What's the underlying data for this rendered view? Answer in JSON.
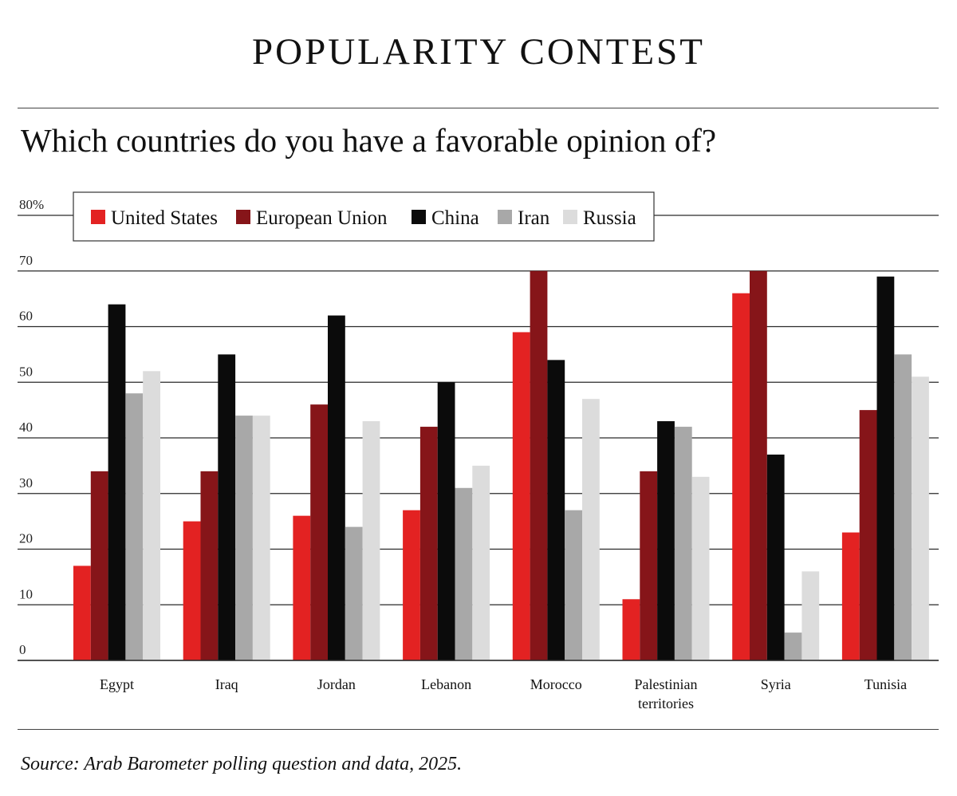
{
  "title": "POPULARITY CONTEST",
  "subtitle": "Which countries do you have a favorable opinion of?",
  "source": "Source: Arab Barometer polling question and data, 2025.",
  "colors": {
    "united_states": "#e32222",
    "european_union": "#861519",
    "china": "#0b0b0b",
    "iran": "#a8a8a8",
    "russia": "#dcdcdc"
  },
  "chart_data": {
    "type": "bar",
    "title": "Which countries do you have a favorable opinion of?",
    "xlabel": "",
    "ylabel": "",
    "ylim": [
      0,
      80
    ],
    "yticks": [
      {
        "value": 0,
        "label": "0"
      },
      {
        "value": 10,
        "label": "10"
      },
      {
        "value": 20,
        "label": "20"
      },
      {
        "value": 30,
        "label": "30"
      },
      {
        "value": 40,
        "label": "40"
      },
      {
        "value": 50,
        "label": "50"
      },
      {
        "value": 60,
        "label": "60"
      },
      {
        "value": 70,
        "label": "70"
      },
      {
        "value": 80,
        "label": "80%"
      }
    ],
    "legend_position": "top-left",
    "categories": [
      [
        "Egypt"
      ],
      [
        "Iraq"
      ],
      [
        "Jordan"
      ],
      [
        "Lebanon"
      ],
      [
        "Morocco"
      ],
      [
        "Palestinian",
        "territories"
      ],
      [
        "Syria"
      ],
      [
        "Tunisia"
      ]
    ],
    "series": [
      {
        "name": "United States",
        "color": "#e32222",
        "values": [
          17,
          25,
          26,
          27,
          59,
          11,
          66,
          23
        ]
      },
      {
        "name": "European Union",
        "color": "#861519",
        "values": [
          34,
          34,
          46,
          42,
          70,
          34,
          70,
          45
        ]
      },
      {
        "name": "China",
        "color": "#0b0b0b",
        "values": [
          64,
          55,
          62,
          50,
          54,
          43,
          37,
          69
        ]
      },
      {
        "name": "Iran",
        "color": "#a8a8a8",
        "values": [
          48,
          44,
          24,
          31,
          27,
          42,
          5,
          55
        ]
      },
      {
        "name": "Russia",
        "color": "#dcdcdc",
        "values": [
          52,
          44,
          43,
          35,
          47,
          33,
          16,
          51
        ]
      }
    ]
  }
}
